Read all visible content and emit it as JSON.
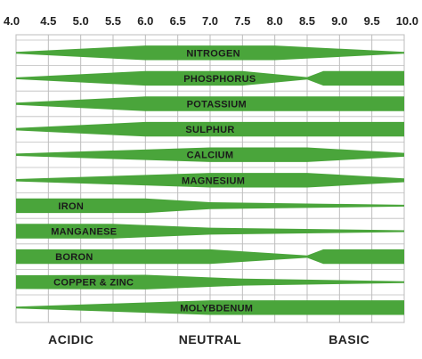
{
  "chart_data": {
    "type": "band",
    "x_ticks": [
      "4.0",
      "4.5",
      "5.0",
      "5.5",
      "6.0",
      "6.5",
      "7.0",
      "7.5",
      "8.0",
      "8.5",
      "9.0",
      "9.5",
      "10.0"
    ],
    "xlim": [
      4.0,
      10.0
    ],
    "grid": true,
    "region_labels": [
      {
        "text": "ACIDIC",
        "ph": 4.85
      },
      {
        "text": "NEUTRAL",
        "ph": 7.0
      },
      {
        "text": "BASIC",
        "ph": 9.15
      }
    ],
    "nutrients": [
      {
        "name": "NITROGEN",
        "label_ph": 7.05,
        "profile": [
          [
            4.0,
            0.12
          ],
          [
            6.0,
            0.95
          ],
          [
            8.0,
            0.95
          ],
          [
            10.0,
            0.12
          ]
        ]
      },
      {
        "name": "PHOSPHORUS",
        "label_ph": 7.15,
        "profile": [
          [
            4.0,
            0.12
          ],
          [
            6.0,
            0.95
          ],
          [
            7.5,
            0.95
          ],
          [
            8.5,
            0.15
          ],
          [
            8.75,
            0.95
          ],
          [
            10.0,
            0.95
          ]
        ]
      },
      {
        "name": "POTASSIUM",
        "label_ph": 7.1,
        "profile": [
          [
            4.0,
            0.15
          ],
          [
            6.0,
            0.95
          ],
          [
            10.0,
            0.95
          ]
        ]
      },
      {
        "name": "SULPHUR",
        "label_ph": 7.0,
        "profile": [
          [
            4.0,
            0.15
          ],
          [
            6.0,
            0.95
          ],
          [
            10.0,
            0.95
          ]
        ]
      },
      {
        "name": "CALCIUM",
        "label_ph": 7.0,
        "profile": [
          [
            4.0,
            0.15
          ],
          [
            7.0,
            0.95
          ],
          [
            8.5,
            0.95
          ],
          [
            10.0,
            0.25
          ]
        ]
      },
      {
        "name": "MAGNESIUM",
        "label_ph": 7.05,
        "profile": [
          [
            4.0,
            0.15
          ],
          [
            7.0,
            0.95
          ],
          [
            8.5,
            0.95
          ],
          [
            10.0,
            0.25
          ]
        ]
      },
      {
        "name": "IRON",
        "label_ph": 4.85,
        "profile": [
          [
            4.0,
            0.95
          ],
          [
            6.0,
            0.95
          ],
          [
            7.0,
            0.45
          ],
          [
            10.0,
            0.12
          ]
        ]
      },
      {
        "name": "MANGANESE",
        "label_ph": 5.05,
        "profile": [
          [
            4.0,
            0.95
          ],
          [
            5.5,
            0.95
          ],
          [
            7.0,
            0.45
          ],
          [
            10.0,
            0.12
          ]
        ]
      },
      {
        "name": "BORON",
        "label_ph": 4.9,
        "profile": [
          [
            4.0,
            0.95
          ],
          [
            7.0,
            0.95
          ],
          [
            8.5,
            0.15
          ],
          [
            8.75,
            0.95
          ],
          [
            10.0,
            0.95
          ]
        ]
      },
      {
        "name": "COPPER & ZINC",
        "label_ph": 5.2,
        "profile": [
          [
            4.0,
            0.9
          ],
          [
            6.0,
            0.95
          ],
          [
            7.5,
            0.45
          ],
          [
            10.0,
            0.12
          ]
        ]
      },
      {
        "name": "MOLYBDENUM",
        "label_ph": 7.1,
        "profile": [
          [
            4.0,
            0.12
          ],
          [
            7.0,
            0.95
          ],
          [
            10.0,
            0.95
          ]
        ]
      }
    ],
    "colors": {
      "band": "#4aa53b",
      "grid": "#bdbdbd",
      "text": "#1a1a1a"
    }
  }
}
